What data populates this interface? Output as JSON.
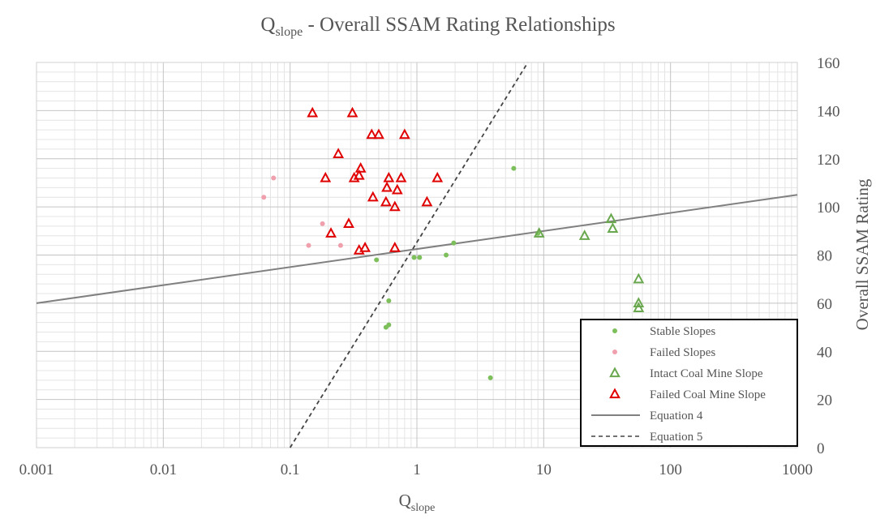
{
  "chart_data": {
    "type": "scatter",
    "title_main": "Q",
    "title_sub": "slope",
    "title_rest": " - Overall SSAM Rating Relationships",
    "xlabel_main": "Q",
    "xlabel_sub": "slope",
    "ylabel": "Overall SSAM Rating",
    "x_scale": "log",
    "xlim": [
      0.001,
      1000
    ],
    "ylim": [
      0,
      160
    ],
    "grid": true,
    "x_ticks": [
      {
        "value": 0.001,
        "label": "0.001"
      },
      {
        "value": 0.01,
        "label": "0.01"
      },
      {
        "value": 0.1,
        "label": "0.1"
      },
      {
        "value": 1,
        "label": "1"
      },
      {
        "value": 10,
        "label": "10"
      },
      {
        "value": 100,
        "label": "100"
      },
      {
        "value": 1000,
        "label": "1000"
      }
    ],
    "y_ticks": [
      {
        "value": 0,
        "label": "0"
      },
      {
        "value": 20,
        "label": "20"
      },
      {
        "value": 40,
        "label": "40"
      },
      {
        "value": 60,
        "label": "60"
      },
      {
        "value": 80,
        "label": "80"
      },
      {
        "value": 100,
        "label": "100"
      },
      {
        "value": 120,
        "label": "120"
      },
      {
        "value": 140,
        "label": "140"
      },
      {
        "value": 160,
        "label": "160"
      }
    ],
    "legend_position": "bottom-right",
    "series": [
      {
        "name": "Stable Slopes",
        "marker": "dot",
        "color": "#7dbf5a",
        "points": [
          {
            "x": 0.48,
            "y": 78
          },
          {
            "x": 0.57,
            "y": 50
          },
          {
            "x": 0.6,
            "y": 51
          },
          {
            "x": 0.6,
            "y": 61
          },
          {
            "x": 0.95,
            "y": 79
          },
          {
            "x": 1.05,
            "y": 79
          },
          {
            "x": 1.7,
            "y": 80
          },
          {
            "x": 1.95,
            "y": 85
          },
          {
            "x": 3.8,
            "y": 29
          },
          {
            "x": 5.8,
            "y": 116
          },
          {
            "x": 9,
            "y": 89
          }
        ]
      },
      {
        "name": "Failed Slopes",
        "marker": "dot",
        "color": "#f0a0ac",
        "points": [
          {
            "x": 0.062,
            "y": 104
          },
          {
            "x": 0.074,
            "y": 112
          },
          {
            "x": 0.14,
            "y": 84
          },
          {
            "x": 0.18,
            "y": 93
          },
          {
            "x": 0.25,
            "y": 84
          }
        ]
      },
      {
        "name": "Intact Coal Mine Slope",
        "marker": "triangle",
        "color": "#6aa84f",
        "points": [
          {
            "x": 9.2,
            "y": 89
          },
          {
            "x": 21,
            "y": 88
          },
          {
            "x": 34,
            "y": 95
          },
          {
            "x": 35,
            "y": 91
          },
          {
            "x": 56,
            "y": 70
          },
          {
            "x": 56,
            "y": 60
          },
          {
            "x": 56,
            "y": 58
          }
        ]
      },
      {
        "name": "Failed Coal Mine Slope",
        "marker": "triangle",
        "color": "#e00000",
        "points": [
          {
            "x": 0.15,
            "y": 139
          },
          {
            "x": 0.31,
            "y": 139
          },
          {
            "x": 0.44,
            "y": 130
          },
          {
            "x": 0.5,
            "y": 130
          },
          {
            "x": 0.8,
            "y": 130
          },
          {
            "x": 0.24,
            "y": 122
          },
          {
            "x": 0.36,
            "y": 116
          },
          {
            "x": 0.19,
            "y": 112
          },
          {
            "x": 0.32,
            "y": 112
          },
          {
            "x": 0.35,
            "y": 113
          },
          {
            "x": 0.6,
            "y": 112
          },
          {
            "x": 0.75,
            "y": 112
          },
          {
            "x": 1.45,
            "y": 112
          },
          {
            "x": 0.58,
            "y": 108
          },
          {
            "x": 0.7,
            "y": 107
          },
          {
            "x": 0.45,
            "y": 104
          },
          {
            "x": 0.57,
            "y": 102
          },
          {
            "x": 1.2,
            "y": 102
          },
          {
            "x": 0.67,
            "y": 100
          },
          {
            "x": 0.29,
            "y": 93
          },
          {
            "x": 0.21,
            "y": 89
          },
          {
            "x": 0.35,
            "y": 82
          },
          {
            "x": 0.39,
            "y": 83
          },
          {
            "x": 0.67,
            "y": 83
          }
        ]
      },
      {
        "name": "Equation 4",
        "marker": "line",
        "style": "solid",
        "color": "#808080",
        "points": [
          {
            "x": 0.001,
            "y": 60
          },
          {
            "x": 1000,
            "y": 105
          }
        ]
      },
      {
        "name": "Equation 5",
        "marker": "line",
        "style": "dashed",
        "color": "#444444",
        "points": [
          {
            "x": 0.1,
            "y": 0
          },
          {
            "x": 7.5,
            "y": 160
          }
        ]
      }
    ]
  }
}
